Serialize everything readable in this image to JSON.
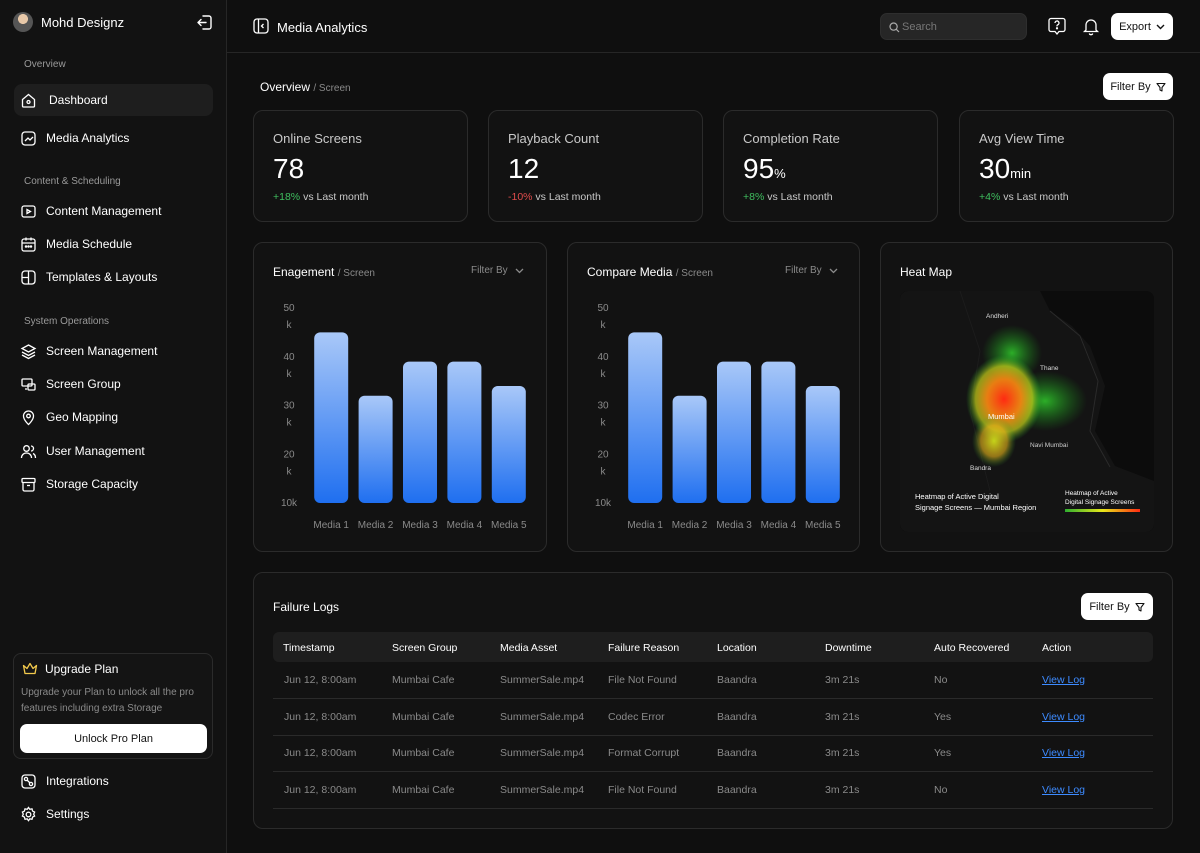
{
  "user": {
    "name": "Mohd Designz"
  },
  "sidebar": {
    "sections": {
      "overview": "Overview",
      "content": "Content & Scheduling",
      "system": "System Operations"
    },
    "items": [
      {
        "label": "Dashboard"
      },
      {
        "label": "Media Analytics"
      },
      {
        "label": "Content Management"
      },
      {
        "label": "Media Schedule"
      },
      {
        "label": "Templates & Layouts"
      },
      {
        "label": "Screen Management"
      },
      {
        "label": "Screen Group"
      },
      {
        "label": "Geo Mapping"
      },
      {
        "label": "User Management"
      },
      {
        "label": "Storage Capacity"
      }
    ],
    "upgrade": {
      "title": "Upgrade Plan",
      "desc": "Upgrade your Plan to unlock all the pro features including extra Storage",
      "button": "Unlock Pro Plan"
    },
    "bottom": [
      {
        "label": "Integrations"
      },
      {
        "label": "Settings"
      }
    ]
  },
  "topbar": {
    "title": "Media Analytics",
    "search_placeholder": "Search",
    "export": "Export"
  },
  "overview": {
    "title": "Overview",
    "sub": "/ Screen",
    "filter": "Filter By"
  },
  "stats": [
    {
      "label": "Online Screens",
      "value": "78",
      "unit": "",
      "delta": "+18%",
      "suffix": " vs Last month",
      "trend": "up"
    },
    {
      "label": "Playback Count",
      "value": "12",
      "unit": "",
      "delta": "-10%",
      "suffix": " vs Last month",
      "trend": "down"
    },
    {
      "label": "Completion Rate",
      "value": "95",
      "unit": "%",
      "delta": "+8%",
      "suffix": " vs Last month",
      "trend": "up"
    },
    {
      "label": "Avg View Time",
      "value": "30",
      "unit": "min",
      "delta": "+4%",
      "suffix": " vs Last month",
      "trend": "up"
    }
  ],
  "cards": {
    "engagement": {
      "title": "Enagement",
      "sub": "/ Screen",
      "filter": "Filter By"
    },
    "compare": {
      "title": "Compare Media",
      "sub": "/ Screen",
      "filter": "Filter By"
    },
    "heatmap": {
      "title": "Heat Map",
      "places": [
        "Andheri",
        "Thane",
        "Mumbai",
        "Navi Mumbai",
        "Bandra"
      ],
      "caption_line1": "Heatmap of Active Digital",
      "caption_line2": "Signage Screens — Mumbai Region",
      "legend_line1": "Heatmap of Active",
      "legend_line2": "Digital Signage Screens"
    }
  },
  "chart_data": [
    {
      "type": "bar",
      "title": "Enagement",
      "categories": [
        "Media 1",
        "Media 2",
        "Media 3",
        "Media 4",
        "Media 5"
      ],
      "values": [
        45,
        32,
        39,
        39,
        34
      ],
      "ylim": [
        10,
        50
      ],
      "yticks": [
        "50 k",
        "40 k",
        "30 k",
        "20 k",
        "10k"
      ],
      "colors": {
        "top": "#a9c8f8",
        "bottom": "#1f6ff0"
      }
    },
    {
      "type": "bar",
      "title": "Compare Media",
      "categories": [
        "Media 1",
        "Media 2",
        "Media 3",
        "Media 4",
        "Media 5"
      ],
      "values": [
        45,
        32,
        39,
        39,
        34
      ],
      "ylim": [
        10,
        50
      ],
      "yticks": [
        "50 k",
        "40 k",
        "30 k",
        "20 k",
        "10k"
      ],
      "colors": {
        "top": "#a9c8f8",
        "bottom": "#1f6ff0"
      }
    }
  ],
  "failure_logs": {
    "title": "Failure Logs",
    "filter": "Filter By",
    "columns": [
      "Timestamp",
      "Screen Group",
      "Media Asset",
      "Failure Reason",
      "Location",
      "Downtime",
      "Auto Recovered",
      "Action"
    ],
    "rows": [
      [
        "Jun 12, 8:00am",
        "Mumbai Cafe",
        "SummerSale.mp4",
        "File Not Found",
        "Baandra",
        "3m 21s",
        "No",
        "View Log"
      ],
      [
        "Jun 12, 8:00am",
        "Mumbai Cafe",
        "SummerSale.mp4",
        "Codec Error",
        "Baandra",
        "3m 21s",
        "Yes",
        "View Log"
      ],
      [
        "Jun 12, 8:00am",
        "Mumbai Cafe",
        "SummerSale.mp4",
        "Format Corrupt",
        "Baandra",
        "3m 21s",
        "Yes",
        "View Log"
      ],
      [
        "Jun 12, 8:00am",
        "Mumbai Cafe",
        "SummerSale.mp4",
        "File Not Found",
        "Baandra",
        "3m 21s",
        "No",
        "View Log"
      ]
    ]
  },
  "colors": {
    "positive": "#3fbf5f",
    "negative": "#e04c4c",
    "link": "#3d8bff",
    "background": "#0f0f0f"
  }
}
